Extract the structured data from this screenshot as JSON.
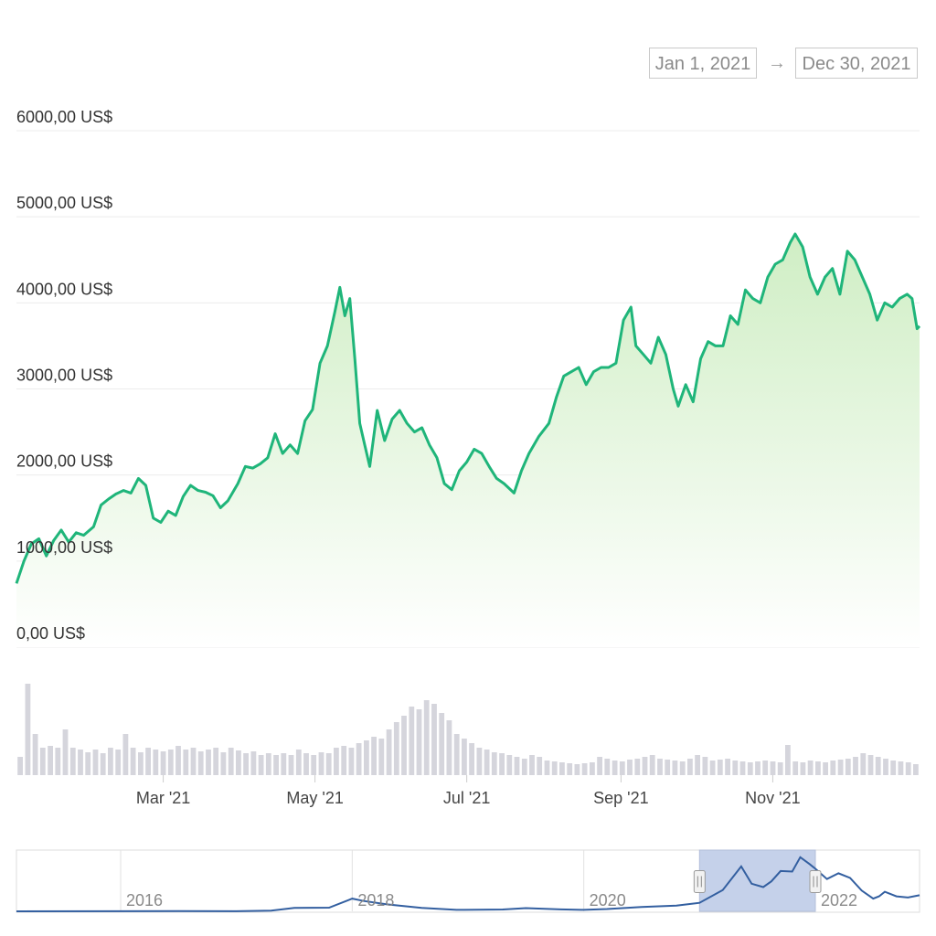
{
  "range": {
    "start": "Jan 1, 2021",
    "arrow": "→",
    "end": "Dec 30, 2021"
  },
  "colors": {
    "line": "#1fb57a",
    "area_top": "#cfeec4",
    "area_bottom": "#ffffff",
    "volume": "#d5d5dc",
    "navigator_line": "#335fa0",
    "navigator_selection": "#c5d1ea"
  },
  "chart_data": [
    {
      "type": "area",
      "title": "",
      "xlabel": "",
      "ylabel": "",
      "x_range": [
        "2021-01-01",
        "2021-12-30"
      ],
      "ylim": [
        0,
        6000
      ],
      "y_ticks": [
        {
          "value": 6000,
          "label": "6000,00 US$"
        },
        {
          "value": 5000,
          "label": "5000,00 US$"
        },
        {
          "value": 4000,
          "label": "4000,00 US$"
        },
        {
          "value": 3000,
          "label": "3000,00 US$"
        },
        {
          "value": 2000,
          "label": "2000,00 US$"
        },
        {
          "value": 1000,
          "label": "1000,00 US$"
        },
        {
          "value": 0,
          "label": "0,00 US$"
        }
      ],
      "x_ticks": [
        {
          "date": "2021-03-01",
          "label": "Mar '21"
        },
        {
          "date": "2021-05-01",
          "label": "May '21"
        },
        {
          "date": "2021-07-01",
          "label": "Jul '21"
        },
        {
          "date": "2021-09-01",
          "label": "Sep '21"
        },
        {
          "date": "2021-11-01",
          "label": "Nov '21"
        }
      ],
      "grid": true,
      "legend": "none",
      "series": [
        {
          "points": [
            [
              "2021-01-01",
              740
            ],
            [
              "2021-01-04",
              1000
            ],
            [
              "2021-01-07",
              1200
            ],
            [
              "2021-01-10",
              1260
            ],
            [
              "2021-01-13",
              1060
            ],
            [
              "2021-01-16",
              1240
            ],
            [
              "2021-01-19",
              1360
            ],
            [
              "2021-01-22",
              1220
            ],
            [
              "2021-01-25",
              1330
            ],
            [
              "2021-01-28",
              1300
            ],
            [
              "2021-02-01",
              1400
            ],
            [
              "2021-02-04",
              1650
            ],
            [
              "2021-02-07",
              1720
            ],
            [
              "2021-02-10",
              1780
            ],
            [
              "2021-02-13",
              1820
            ],
            [
              "2021-02-16",
              1790
            ],
            [
              "2021-02-19",
              1960
            ],
            [
              "2021-02-22",
              1880
            ],
            [
              "2021-02-25",
              1500
            ],
            [
              "2021-02-28",
              1450
            ],
            [
              "2021-03-03",
              1580
            ],
            [
              "2021-03-06",
              1530
            ],
            [
              "2021-03-09",
              1750
            ],
            [
              "2021-03-12",
              1880
            ],
            [
              "2021-03-15",
              1820
            ],
            [
              "2021-03-18",
              1800
            ],
            [
              "2021-03-21",
              1760
            ],
            [
              "2021-03-24",
              1620
            ],
            [
              "2021-03-27",
              1700
            ],
            [
              "2021-03-31",
              1900
            ],
            [
              "2021-04-03",
              2100
            ],
            [
              "2021-04-06",
              2080
            ],
            [
              "2021-04-09",
              2130
            ],
            [
              "2021-04-12",
              2200
            ],
            [
              "2021-04-15",
              2480
            ],
            [
              "2021-04-18",
              2250
            ],
            [
              "2021-04-21",
              2350
            ],
            [
              "2021-04-24",
              2250
            ],
            [
              "2021-04-27",
              2630
            ],
            [
              "2021-04-30",
              2760
            ],
            [
              "2021-05-03",
              3300
            ],
            [
              "2021-05-06",
              3500
            ],
            [
              "2021-05-09",
              3900
            ],
            [
              "2021-05-11",
              4180
            ],
            [
              "2021-05-13",
              3850
            ],
            [
              "2021-05-15",
              4050
            ],
            [
              "2021-05-17",
              3350
            ],
            [
              "2021-05-19",
              2600
            ],
            [
              "2021-05-21",
              2350
            ],
            [
              "2021-05-23",
              2100
            ],
            [
              "2021-05-26",
              2750
            ],
            [
              "2021-05-29",
              2400
            ],
            [
              "2021-06-01",
              2650
            ],
            [
              "2021-06-04",
              2750
            ],
            [
              "2021-06-07",
              2600
            ],
            [
              "2021-06-10",
              2500
            ],
            [
              "2021-06-13",
              2550
            ],
            [
              "2021-06-16",
              2350
            ],
            [
              "2021-06-19",
              2200
            ],
            [
              "2021-06-22",
              1900
            ],
            [
              "2021-06-25",
              1830
            ],
            [
              "2021-06-28",
              2050
            ],
            [
              "2021-07-01",
              2150
            ],
            [
              "2021-07-04",
              2300
            ],
            [
              "2021-07-07",
              2250
            ],
            [
              "2021-07-10",
              2100
            ],
            [
              "2021-07-13",
              1960
            ],
            [
              "2021-07-16",
              1900
            ],
            [
              "2021-07-20",
              1790
            ],
            [
              "2021-07-23",
              2050
            ],
            [
              "2021-07-26",
              2250
            ],
            [
              "2021-07-30",
              2450
            ],
            [
              "2021-08-03",
              2600
            ],
            [
              "2021-08-06",
              2900
            ],
            [
              "2021-08-09",
              3150
            ],
            [
              "2021-08-12",
              3200
            ],
            [
              "2021-08-15",
              3250
            ],
            [
              "2021-08-18",
              3050
            ],
            [
              "2021-08-21",
              3200
            ],
            [
              "2021-08-24",
              3250
            ],
            [
              "2021-08-27",
              3250
            ],
            [
              "2021-08-30",
              3300
            ],
            [
              "2021-09-02",
              3800
            ],
            [
              "2021-09-05",
              3950
            ],
            [
              "2021-09-07",
              3500
            ],
            [
              "2021-09-10",
              3400
            ],
            [
              "2021-09-13",
              3300
            ],
            [
              "2021-09-16",
              3600
            ],
            [
              "2021-09-19",
              3400
            ],
            [
              "2021-09-22",
              3000
            ],
            [
              "2021-09-24",
              2800
            ],
            [
              "2021-09-27",
              3050
            ],
            [
              "2021-09-30",
              2850
            ],
            [
              "2021-10-03",
              3350
            ],
            [
              "2021-10-06",
              3550
            ],
            [
              "2021-10-09",
              3500
            ],
            [
              "2021-10-12",
              3500
            ],
            [
              "2021-10-15",
              3850
            ],
            [
              "2021-10-18",
              3750
            ],
            [
              "2021-10-21",
              4150
            ],
            [
              "2021-10-24",
              4050
            ],
            [
              "2021-10-27",
              4000
            ],
            [
              "2021-10-30",
              4300
            ],
            [
              "2021-11-02",
              4450
            ],
            [
              "2021-11-05",
              4500
            ],
            [
              "2021-11-08",
              4700
            ],
            [
              "2021-11-10",
              4800
            ],
            [
              "2021-11-13",
              4650
            ],
            [
              "2021-11-16",
              4300
            ],
            [
              "2021-11-19",
              4100
            ],
            [
              "2021-11-22",
              4300
            ],
            [
              "2021-11-25",
              4400
            ],
            [
              "2021-11-28",
              4100
            ],
            [
              "2021-12-01",
              4600
            ],
            [
              "2021-12-04",
              4500
            ],
            [
              "2021-12-07",
              4300
            ],
            [
              "2021-12-10",
              4100
            ],
            [
              "2021-12-13",
              3800
            ],
            [
              "2021-12-16",
              4000
            ],
            [
              "2021-12-19",
              3950
            ],
            [
              "2021-12-22",
              4050
            ],
            [
              "2021-12-25",
              4100
            ],
            [
              "2021-12-27",
              4050
            ],
            [
              "2021-12-29",
              3700
            ],
            [
              "2021-12-30",
              3730
            ]
          ]
        }
      ]
    },
    {
      "type": "bar",
      "title": "",
      "xlabel": "",
      "ylabel": "",
      "grid": false,
      "legend": "none",
      "x_range": [
        "2021-01-01",
        "2021-12-30"
      ],
      "values_relative": [
        0.2,
        1.0,
        0.45,
        0.3,
        0.32,
        0.3,
        0.5,
        0.3,
        0.28,
        0.25,
        0.28,
        0.24,
        0.3,
        0.28,
        0.45,
        0.3,
        0.25,
        0.3,
        0.28,
        0.26,
        0.28,
        0.32,
        0.28,
        0.3,
        0.26,
        0.28,
        0.3,
        0.25,
        0.3,
        0.27,
        0.24,
        0.26,
        0.22,
        0.24,
        0.22,
        0.24,
        0.22,
        0.28,
        0.24,
        0.22,
        0.25,
        0.24,
        0.3,
        0.32,
        0.3,
        0.35,
        0.38,
        0.42,
        0.4,
        0.5,
        0.58,
        0.65,
        0.75,
        0.72,
        0.82,
        0.78,
        0.68,
        0.6,
        0.45,
        0.4,
        0.35,
        0.3,
        0.28,
        0.25,
        0.24,
        0.22,
        0.2,
        0.18,
        0.22,
        0.2,
        0.16,
        0.15,
        0.14,
        0.13,
        0.12,
        0.13,
        0.14,
        0.2,
        0.18,
        0.16,
        0.15,
        0.17,
        0.18,
        0.2,
        0.22,
        0.18,
        0.17,
        0.16,
        0.15,
        0.18,
        0.22,
        0.2,
        0.16,
        0.17,
        0.18,
        0.16,
        0.15,
        0.14,
        0.15,
        0.16,
        0.15,
        0.14,
        0.33,
        0.15,
        0.14,
        0.16,
        0.15,
        0.14,
        0.16,
        0.17,
        0.18,
        0.2,
        0.24,
        0.22,
        0.2,
        0.18,
        0.16,
        0.15,
        0.14,
        0.12
      ]
    },
    {
      "type": "line",
      "title": "",
      "xlabel": "",
      "ylabel": "",
      "grid": true,
      "legend": "none",
      "x_range": [
        2015.1,
        2022.9
      ],
      "x_ticks": [
        {
          "value": 2016,
          "label": "2016"
        },
        {
          "value": 2018,
          "label": "2018"
        },
        {
          "value": 2020,
          "label": "2020"
        },
        {
          "value": 2022,
          "label": "2022"
        }
      ],
      "selected_range": [
        2021.0,
        2022.0
      ],
      "ylim": [
        0,
        5000
      ],
      "series": [
        {
          "points": [
            [
              2015.1,
              2
            ],
            [
              2016.0,
              10
            ],
            [
              2016.5,
              12
            ],
            [
              2017.0,
              10
            ],
            [
              2017.3,
              60
            ],
            [
              2017.5,
              300
            ],
            [
              2017.8,
              320
            ],
            [
              2018.0,
              1100
            ],
            [
              2018.1,
              900
            ],
            [
              2018.3,
              600
            ],
            [
              2018.6,
              300
            ],
            [
              2018.9,
              130
            ],
            [
              2019.3,
              160
            ],
            [
              2019.5,
              280
            ],
            [
              2019.8,
              170
            ],
            [
              2020.0,
              130
            ],
            [
              2020.2,
              200
            ],
            [
              2020.5,
              380
            ],
            [
              2020.8,
              500
            ],
            [
              2021.0,
              740
            ],
            [
              2021.2,
              1850
            ],
            [
              2021.36,
              3900
            ],
            [
              2021.45,
              2400
            ],
            [
              2021.55,
              2100
            ],
            [
              2021.62,
              2600
            ],
            [
              2021.7,
              3500
            ],
            [
              2021.8,
              3450
            ],
            [
              2021.87,
              4700
            ],
            [
              2021.95,
              4100
            ],
            [
              2022.0,
              3700
            ],
            [
              2022.1,
              2800
            ],
            [
              2022.2,
              3300
            ],
            [
              2022.3,
              2900
            ],
            [
              2022.4,
              1800
            ],
            [
              2022.5,
              1100
            ],
            [
              2022.55,
              1300
            ],
            [
              2022.6,
              1700
            ],
            [
              2022.7,
              1300
            ],
            [
              2022.8,
              1200
            ],
            [
              2022.9,
              1400
            ]
          ]
        }
      ]
    }
  ]
}
